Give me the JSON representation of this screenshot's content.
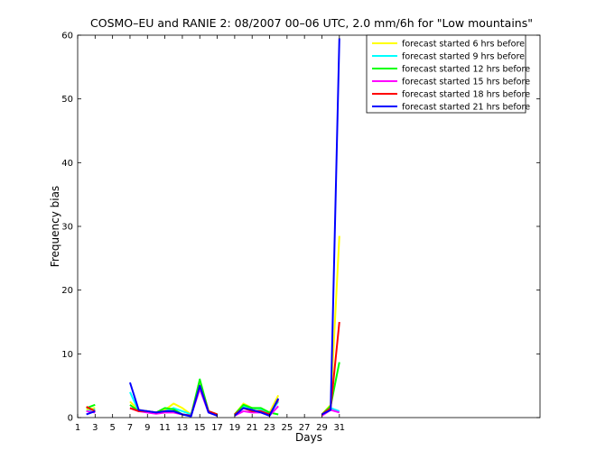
{
  "chart_data": {
    "type": "line",
    "title": "COSMO–EU and RANIE 2: 08/2007 00–06 UTC, 2.0 mm/6h for \"Low mountains\"",
    "xlabel": "Days",
    "ylabel": "Frequency bias",
    "xlim": [
      1,
      54
    ],
    "ylim": [
      0,
      60
    ],
    "xticks": [
      1,
      3,
      5,
      7,
      9,
      11,
      13,
      15,
      17,
      19,
      21,
      23,
      25,
      27,
      29,
      31
    ],
    "yticks": [
      0,
      10,
      20,
      30,
      40,
      50,
      60
    ],
    "legend_position": "top-right",
    "grid": false,
    "series": [
      {
        "name": "forecast started 6 hrs before",
        "color": "#ffff00",
        "values": [
          [
            2,
            1.2
          ],
          [
            3,
            1.5
          ],
          [
            null,
            null
          ],
          [
            7,
            2.5
          ],
          [
            8,
            1.2
          ],
          [
            9,
            1.0
          ],
          [
            10,
            0.8
          ],
          [
            11,
            1.2
          ],
          [
            12,
            2.2
          ],
          [
            13,
            1.5
          ],
          [
            14,
            0.5
          ],
          [
            15,
            5.5
          ],
          [
            16,
            1.0
          ],
          [
            17,
            0.5
          ],
          [
            null,
            null
          ],
          [
            19,
            0.5
          ],
          [
            20,
            2.2
          ],
          [
            21,
            1.5
          ],
          [
            22,
            1.2
          ],
          [
            23,
            0.8
          ],
          [
            24,
            3.5
          ],
          [
            null,
            null
          ],
          [
            29,
            0.5
          ],
          [
            30,
            2.0
          ],
          [
            31,
            28.5
          ]
        ]
      },
      {
        "name": "forecast started 9 hrs before",
        "color": "#00ffff",
        "values": [
          [
            2,
            1.0
          ],
          [
            3,
            1.3
          ],
          [
            null,
            null
          ],
          [
            7,
            4.0
          ],
          [
            8,
            1.0
          ],
          [
            9,
            1.0
          ],
          [
            10,
            0.8
          ],
          [
            11,
            1.0
          ],
          [
            12,
            1.5
          ],
          [
            13,
            1.0
          ],
          [
            14,
            0.5
          ],
          [
            15,
            5.0
          ],
          [
            16,
            1.0
          ],
          [
            17,
            0.5
          ],
          [
            null,
            null
          ],
          [
            19,
            0.5
          ],
          [
            20,
            1.8
          ],
          [
            21,
            1.5
          ],
          [
            22,
            1.3
          ],
          [
            23,
            0.5
          ],
          [
            24,
            2.5
          ],
          [
            null,
            null
          ],
          [
            29,
            0.5
          ],
          [
            30,
            1.5
          ],
          [
            31,
            1.0
          ]
        ]
      },
      {
        "name": "forecast started 12 hrs before",
        "color": "#00ff00",
        "values": [
          [
            2,
            1.5
          ],
          [
            3,
            2.0
          ],
          [
            null,
            null
          ],
          [
            7,
            2.0
          ],
          [
            8,
            1.0
          ],
          [
            9,
            1.0
          ],
          [
            10,
            0.8
          ],
          [
            11,
            1.5
          ],
          [
            12,
            1.3
          ],
          [
            13,
            0.5
          ],
          [
            14,
            0.3
          ],
          [
            15,
            6.0
          ],
          [
            16,
            1.0
          ],
          [
            17,
            0.5
          ],
          [
            null,
            null
          ],
          [
            19,
            0.5
          ],
          [
            20,
            2.0
          ],
          [
            21,
            1.5
          ],
          [
            22,
            1.5
          ],
          [
            23,
            0.8
          ],
          [
            24,
            0.5
          ],
          [
            null,
            null
          ],
          [
            29,
            0.5
          ],
          [
            30,
            1.8
          ],
          [
            31,
            8.7
          ]
        ]
      },
      {
        "name": "forecast started 15 hrs before",
        "color": "#ff00ff",
        "values": [
          [
            2,
            1.0
          ],
          [
            3,
            0.8
          ],
          [
            null,
            null
          ],
          [
            7,
            1.5
          ],
          [
            8,
            1.0
          ],
          [
            9,
            0.8
          ],
          [
            10,
            0.6
          ],
          [
            11,
            0.8
          ],
          [
            12,
            0.8
          ],
          [
            13,
            0.5
          ],
          [
            14,
            0.3
          ],
          [
            15,
            4.5
          ],
          [
            16,
            0.8
          ],
          [
            17,
            0.3
          ],
          [
            null,
            null
          ],
          [
            19,
            0.3
          ],
          [
            20,
            1.0
          ],
          [
            21,
            0.8
          ],
          [
            22,
            0.8
          ],
          [
            23,
            0.3
          ],
          [
            24,
            1.8
          ],
          [
            null,
            null
          ],
          [
            29,
            0.3
          ],
          [
            30,
            1.2
          ],
          [
            31,
            0.8
          ]
        ]
      },
      {
        "name": "forecast started 18 hrs before",
        "color": "#ff0000",
        "values": [
          [
            2,
            1.7
          ],
          [
            3,
            1.0
          ],
          [
            null,
            null
          ],
          [
            7,
            1.5
          ],
          [
            8,
            1.0
          ],
          [
            9,
            1.0
          ],
          [
            10,
            0.8
          ],
          [
            11,
            1.0
          ],
          [
            12,
            1.0
          ],
          [
            13,
            0.5
          ],
          [
            14,
            0.3
          ],
          [
            15,
            5.0
          ],
          [
            16,
            1.0
          ],
          [
            17,
            0.5
          ],
          [
            null,
            null
          ],
          [
            19,
            0.5
          ],
          [
            20,
            1.5
          ],
          [
            21,
            1.0
          ],
          [
            22,
            1.0
          ],
          [
            23,
            0.5
          ],
          [
            24,
            2.8
          ],
          [
            null,
            null
          ],
          [
            29,
            0.5
          ],
          [
            30,
            1.5
          ],
          [
            31,
            15.0
          ]
        ]
      },
      {
        "name": "forecast started 21 hrs before",
        "color": "#0000ff",
        "values": [
          [
            2,
            0.5
          ],
          [
            3,
            1.0
          ],
          [
            null,
            null
          ],
          [
            7,
            5.5
          ],
          [
            8,
            1.2
          ],
          [
            9,
            1.0
          ],
          [
            10,
            0.8
          ],
          [
            11,
            1.0
          ],
          [
            12,
            1.0
          ],
          [
            13,
            0.5
          ],
          [
            14,
            0.2
          ],
          [
            15,
            5.0
          ],
          [
            16,
            0.8
          ],
          [
            17,
            0.3
          ],
          [
            null,
            null
          ],
          [
            19,
            0.3
          ],
          [
            20,
            1.5
          ],
          [
            21,
            1.2
          ],
          [
            22,
            0.8
          ],
          [
            23,
            0.3
          ],
          [
            24,
            3.0
          ],
          [
            null,
            null
          ],
          [
            29,
            0.5
          ],
          [
            30,
            1.2
          ],
          [
            31,
            59.5
          ]
        ]
      }
    ]
  }
}
